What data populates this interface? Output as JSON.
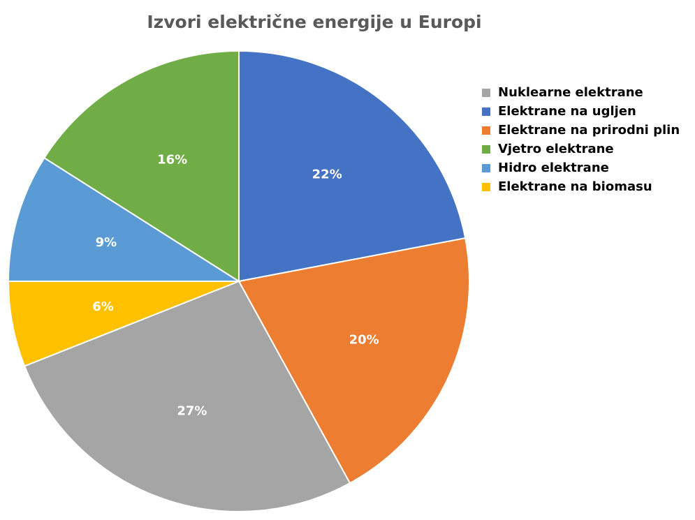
{
  "chart_data": {
    "type": "pie",
    "title": "Izvori električne energije u Europi",
    "categories": [
      "Elektrane na ugljen",
      "Elektrane na prirodni plin",
      "Nuklearne elektrane",
      "Elektrane na biomasu",
      "Hidro elektrane",
      "Vjetro elektrane"
    ],
    "values": [
      22,
      20,
      27,
      6,
      9,
      16
    ],
    "value_labels": [
      "22%",
      "20%",
      "27%",
      "6%",
      "9%",
      "16%"
    ],
    "colors": [
      "#4472c4",
      "#ed7d31",
      "#a5a5a5",
      "#ffc000",
      "#5b9bd5",
      "#70ad47"
    ],
    "legend": "right"
  }
}
